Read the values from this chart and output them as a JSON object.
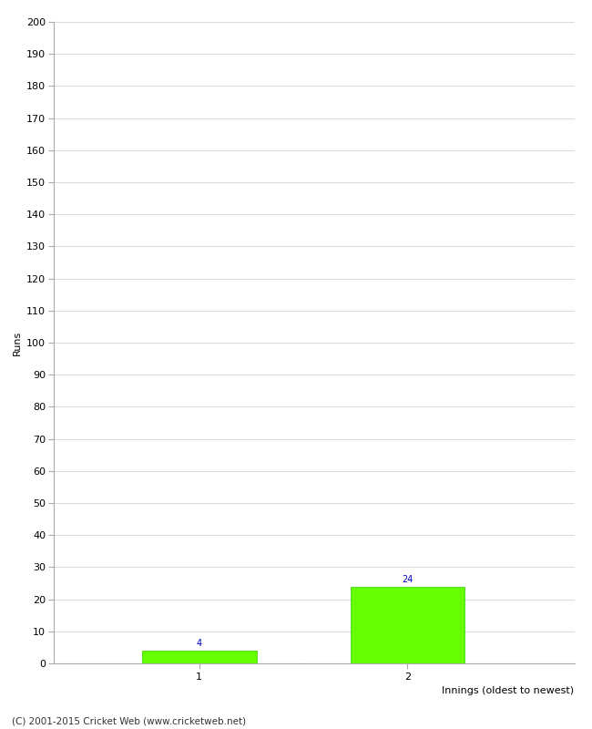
{
  "categories": [
    1,
    2
  ],
  "values": [
    4,
    24
  ],
  "bar_color": "#66FF00",
  "bar_edge_color": "#33CC00",
  "title": "",
  "xlabel": "Innings (oldest to newest)",
  "ylabel": "Runs",
  "ylim": [
    0,
    200
  ],
  "ytick_step": 10,
  "value_label_color": "#0000CC",
  "value_label_fontsize": 7,
  "axis_label_fontsize": 8,
  "tick_label_fontsize": 8,
  "copyright_text": "(C) 2001-2015 Cricket Web (www.cricketweb.net)",
  "copyright_fontsize": 7.5,
  "background_color": "#ffffff",
  "grid_color": "#cccccc",
  "bar_width": 0.55,
  "xlim": [
    0.3,
    2.8
  ]
}
